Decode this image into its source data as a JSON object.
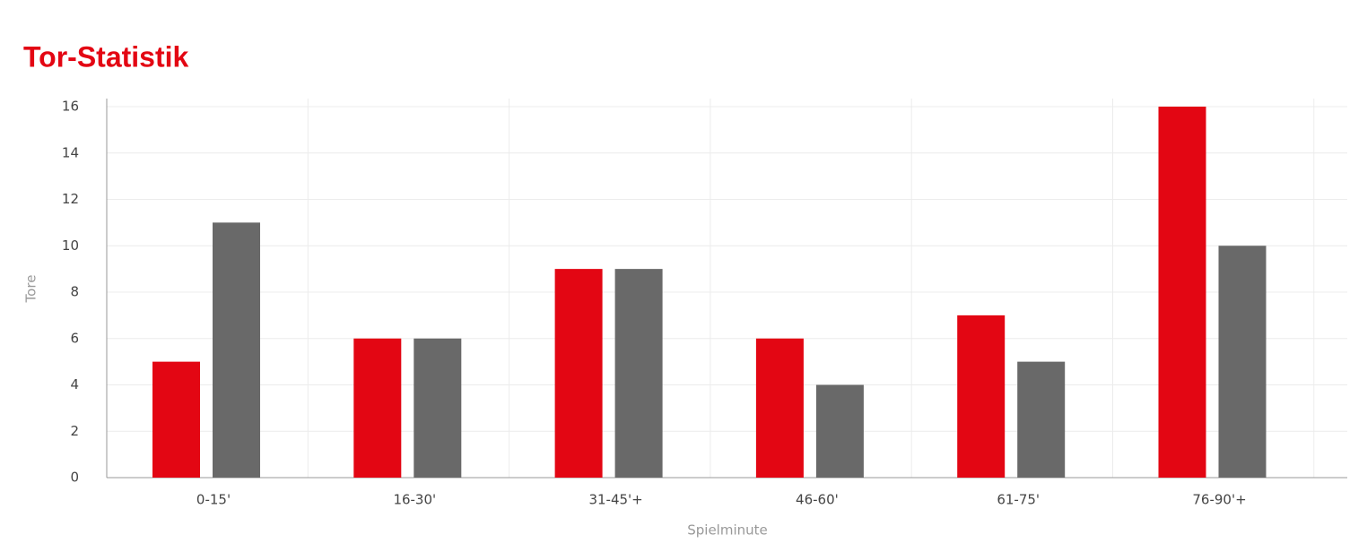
{
  "chart_data": {
    "type": "bar",
    "title": "Tor-Statistik",
    "x_label": "Spielminute",
    "y_label": "Tore",
    "categories": [
      "0-15'",
      "16-30'",
      "31-45'+",
      "46-60'",
      "61-75'",
      "76-90'+"
    ],
    "series": [
      {
        "color": "#e30613",
        "values": [
          5,
          6,
          9,
          6,
          7,
          16
        ]
      },
      {
        "color": "#696969",
        "values": [
          11,
          6,
          9,
          4,
          5,
          10
        ]
      }
    ],
    "ylim": [
      0,
      16
    ],
    "yticks": [
      0,
      2,
      4,
      6,
      8,
      10,
      12,
      14,
      16
    ],
    "grid": true
  }
}
